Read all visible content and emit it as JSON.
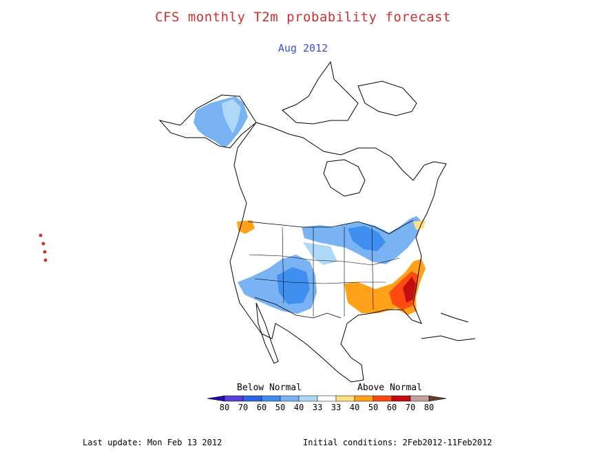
{
  "title": "CFS monthly T2m probability forecast",
  "subtitle": "Aug 2012",
  "legend": {
    "below_label": "Below Normal",
    "above_label": "Above Normal",
    "ticks": [
      "80",
      "70",
      "60",
      "50",
      "40",
      "33",
      "33",
      "40",
      "50",
      "60",
      "70",
      "80"
    ],
    "colors": [
      "#2b0aa6",
      "#5a3fd8",
      "#2a66e6",
      "#3f8ff0",
      "#7ab3f3",
      "#aed8f7",
      "#ffffff",
      "#ffe084",
      "#ffa21a",
      "#ff4b12",
      "#c40e0e",
      "#c5a39a",
      "#6b3a2a"
    ]
  },
  "footer": {
    "last_update": "Last update: Mon Feb 13 2012",
    "initial_conditions": "Initial conditions: 2Feb2012-11Feb2012"
  }
}
